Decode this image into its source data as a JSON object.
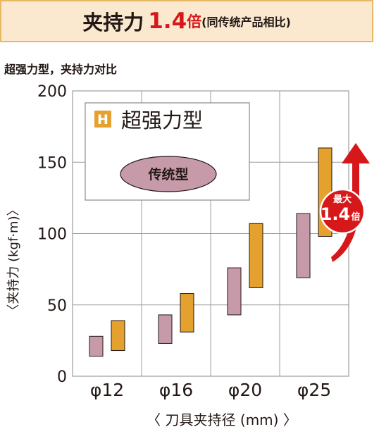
{
  "banner": {
    "main": "夹持力",
    "number": "1.4",
    "multiplier": "倍",
    "note": "(同传统产品相比)"
  },
  "subtitle": "超强力型，夹持力对比",
  "legend": {
    "badge": "H",
    "strong": "超强力型",
    "conventional": "传统型"
  },
  "callout": {
    "line1": "最大",
    "number": "1.4",
    "mult": "倍"
  },
  "colors": {
    "conventional": "#c79aa9",
    "strong": "#e5a12e",
    "accent": "#d7181b",
    "grid": "#9c9c9c"
  },
  "chart_data": {
    "type": "bar",
    "subtitle": "超强力型，夹持力对比",
    "ylabel": "〈夹持力 (kgf·m)〉",
    "xlabel": "〈 刀具夹持径 (mm) 〉",
    "ylim": [
      0,
      200
    ],
    "yticks": [
      "0",
      "50",
      "100",
      "150",
      "200"
    ],
    "categories": [
      "φ12",
      "φ16",
      "φ20",
      "φ25"
    ],
    "series": [
      {
        "name": "传统型",
        "ranges": [
          [
            14,
            28
          ],
          [
            23,
            43
          ],
          [
            43,
            76
          ],
          [
            69,
            114
          ]
        ]
      },
      {
        "name": "超强力型",
        "ranges": [
          [
            18,
            39
          ],
          [
            31,
            58
          ],
          [
            62,
            107
          ],
          [
            98,
            160
          ]
        ]
      }
    ],
    "annotation": "最大 1.4倍",
    "grid": true
  }
}
